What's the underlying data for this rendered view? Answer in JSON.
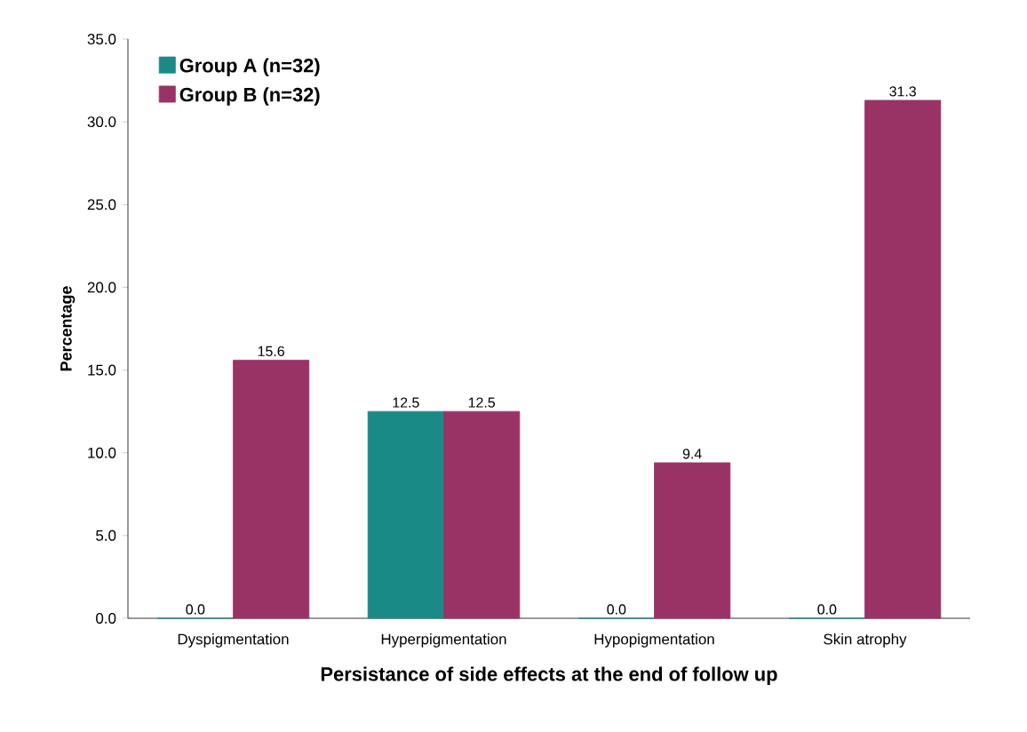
{
  "chart_data": {
    "type": "bar",
    "xlabel": "Persistance of side effects at the end of follow up",
    "ylabel": "Percentage",
    "categories": [
      "Dyspigmentation",
      "Hyperpigmentation",
      "Hypopigmentation",
      "Skin atrophy"
    ],
    "series": [
      {
        "name": "Group A (n=32)",
        "color": "#1a8a87",
        "values": [
          0,
          12.5,
          0,
          0
        ],
        "value_labels": [
          "0.0",
          "12.5",
          "0.0",
          "0.0"
        ]
      },
      {
        "name": "Group B (n=32)",
        "color": "#993366",
        "values": [
          15.6,
          12.5,
          9.4,
          31.3
        ],
        "value_labels": [
          "15.6",
          "12.5",
          "9.4",
          "31.3"
        ]
      }
    ],
    "ylim": [
      0,
      35
    ],
    "yticks": [
      {
        "value": 0,
        "label": "0.0"
      },
      {
        "value": 5,
        "label": "5.0"
      },
      {
        "value": 10,
        "label": "10.0"
      },
      {
        "value": 15,
        "label": "15.0"
      },
      {
        "value": 20,
        "label": "20.0"
      },
      {
        "value": 25,
        "label": "25.0"
      },
      {
        "value": 30,
        "label": "30.0"
      },
      {
        "value": 35,
        "label": "35.0"
      }
    ],
    "grid": false,
    "legend": "top left"
  }
}
